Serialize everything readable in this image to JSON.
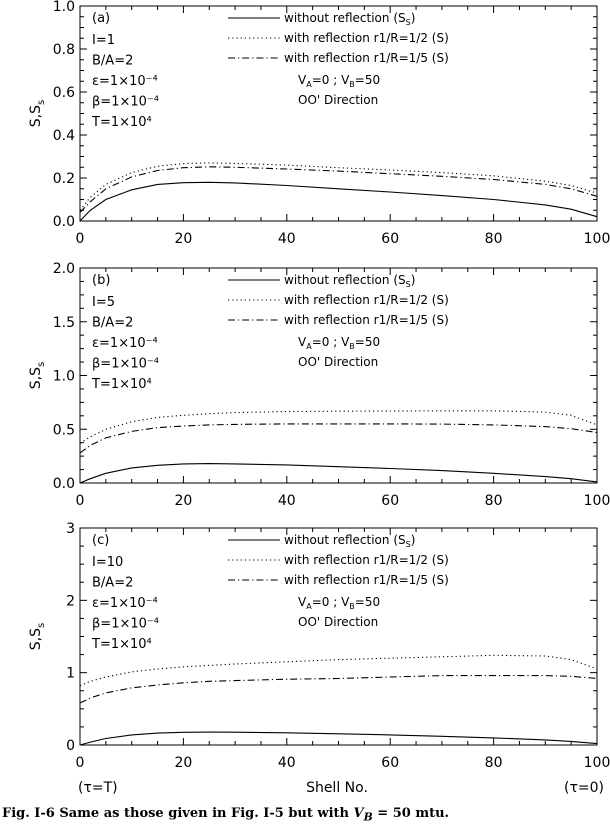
{
  "caption": {
    "prefix": "Fig. I-6 Same as those given in Fig. I-5 but with ",
    "math": "V",
    "math_sub": "B",
    "suffix": " = 50 mtu."
  },
  "bottom_labels": {
    "left": "(τ=T)",
    "center": "Shell No.",
    "right": "(τ=0)"
  },
  "chart_data": [
    {
      "type": "line",
      "panel_label": "(a)",
      "xlim": [
        0,
        100
      ],
      "ylim": [
        0,
        1.0
      ],
      "x_ticks": [
        "0",
        "20",
        "40",
        "60",
        "80",
        "100"
      ],
      "y_ticks": [
        {
          "v": 0.0,
          "t": "0.0"
        },
        {
          "v": 0.2,
          "t": "0.2"
        },
        {
          "v": 0.4,
          "t": "0.4"
        },
        {
          "v": 0.6,
          "t": "0.6"
        },
        {
          "v": 0.8,
          "t": "0.8"
        },
        {
          "v": 1.0,
          "t": "1.0"
        }
      ],
      "ylabel": "S,S",
      "ylabel_sub": "s",
      "params": [
        "I=1",
        "B/A=2",
        "ε=1×10⁻⁴",
        "β=1×10⁻⁴",
        "T=1×10⁴"
      ],
      "legend": [
        {
          "dash": "solid",
          "label": "without reflection (S",
          "sub": "S",
          "tail": ")"
        },
        {
          "dash": "dotted",
          "label": "with reflection r1/R=1/2 (S)"
        },
        {
          "dash": "dashdot",
          "label": "with reflection r1/R=1/5 (S)"
        }
      ],
      "velocity": {
        "a": "V",
        "a_sub": "A",
        "a_val": "=0 ; ",
        "b": "V",
        "b_sub": "B",
        "b_val": "=50"
      },
      "direction": "OO' Direction",
      "series": [
        {
          "dash": "solid",
          "x": [
            0,
            2,
            5,
            10,
            15,
            20,
            25,
            30,
            40,
            50,
            60,
            70,
            80,
            90,
            95,
            100
          ],
          "y": [
            0.0,
            0.05,
            0.1,
            0.145,
            0.17,
            0.178,
            0.18,
            0.177,
            0.165,
            0.15,
            0.135,
            0.118,
            0.1,
            0.075,
            0.055,
            0.02
          ]
        },
        {
          "dash": "dotted",
          "x": [
            0,
            2,
            5,
            10,
            15,
            20,
            25,
            30,
            40,
            50,
            60,
            70,
            80,
            90,
            95,
            100
          ],
          "y": [
            0.05,
            0.11,
            0.17,
            0.225,
            0.255,
            0.267,
            0.27,
            0.268,
            0.26,
            0.248,
            0.237,
            0.225,
            0.21,
            0.185,
            0.165,
            0.13
          ]
        },
        {
          "dash": "dashdot",
          "x": [
            0,
            2,
            5,
            10,
            15,
            20,
            25,
            30,
            40,
            50,
            60,
            70,
            80,
            90,
            95,
            100
          ],
          "y": [
            0.04,
            0.09,
            0.15,
            0.205,
            0.235,
            0.248,
            0.252,
            0.25,
            0.242,
            0.232,
            0.22,
            0.208,
            0.193,
            0.17,
            0.15,
            0.115
          ]
        }
      ]
    },
    {
      "type": "line",
      "panel_label": "(b)",
      "xlim": [
        0,
        100
      ],
      "ylim": [
        0,
        2.0
      ],
      "x_ticks": [
        "0",
        "20",
        "40",
        "60",
        "80",
        "100"
      ],
      "y_ticks": [
        {
          "v": 0.0,
          "t": "0.0"
        },
        {
          "v": 0.5,
          "t": "0.5"
        },
        {
          "v": 1.0,
          "t": "1.0"
        },
        {
          "v": 1.5,
          "t": "1.5"
        },
        {
          "v": 2.0,
          "t": "2.0"
        }
      ],
      "ylabel": "S,S",
      "ylabel_sub": "s",
      "params": [
        "I=5",
        "B/A=2",
        "ε=1×10⁻⁴",
        "β=1×10⁻⁴",
        "T=1×10⁴"
      ],
      "legend": [
        {
          "dash": "solid",
          "label": "without reflection (S",
          "sub": "S",
          "tail": ")"
        },
        {
          "dash": "dotted",
          "label": "with reflection r1/R=1/2 (S)"
        },
        {
          "dash": "dashdot",
          "label": "with reflection r1/R=1/5 (S)"
        }
      ],
      "velocity": {
        "a": "V",
        "a_sub": "A",
        "a_val": "=0 ; ",
        "b": "V",
        "b_sub": "B",
        "b_val": "=50"
      },
      "direction": "OO' Direction",
      "series": [
        {
          "dash": "solid",
          "x": [
            0,
            2,
            5,
            10,
            15,
            20,
            25,
            30,
            40,
            50,
            60,
            70,
            80,
            90,
            95,
            100
          ],
          "y": [
            0.0,
            0.04,
            0.09,
            0.14,
            0.165,
            0.178,
            0.18,
            0.178,
            0.168,
            0.152,
            0.135,
            0.115,
            0.09,
            0.06,
            0.04,
            0.01
          ]
        },
        {
          "dash": "dotted",
          "x": [
            0,
            2,
            5,
            10,
            15,
            20,
            25,
            30,
            40,
            50,
            60,
            70,
            80,
            90,
            95,
            100
          ],
          "y": [
            0.37,
            0.43,
            0.5,
            0.57,
            0.61,
            0.63,
            0.645,
            0.655,
            0.665,
            0.668,
            0.67,
            0.672,
            0.672,
            0.66,
            0.63,
            0.54
          ]
        },
        {
          "dash": "dashdot",
          "x": [
            0,
            2,
            5,
            10,
            15,
            20,
            25,
            30,
            40,
            50,
            60,
            70,
            80,
            90,
            95,
            100
          ],
          "y": [
            0.28,
            0.35,
            0.42,
            0.48,
            0.515,
            0.53,
            0.54,
            0.545,
            0.55,
            0.55,
            0.55,
            0.548,
            0.54,
            0.525,
            0.505,
            0.47
          ]
        }
      ]
    },
    {
      "type": "line",
      "panel_label": "(c)",
      "xlim": [
        0,
        100
      ],
      "ylim": [
        0,
        3
      ],
      "x_ticks": [
        "0",
        "20",
        "40",
        "60",
        "80",
        "100"
      ],
      "y_ticks": [
        {
          "v": 0,
          "t": "0"
        },
        {
          "v": 1,
          "t": "1"
        },
        {
          "v": 2,
          "t": "2"
        },
        {
          "v": 3,
          "t": "3"
        }
      ],
      "ylabel": "S,S",
      "ylabel_sub": "s",
      "params": [
        "I=10",
        "B/A=2",
        "ε=1×10⁻⁴",
        "β=1×10⁻⁴",
        "T=1×10⁴"
      ],
      "legend": [
        {
          "dash": "solid",
          "label": "without reflection (S",
          "sub": "S",
          "tail": ")"
        },
        {
          "dash": "dotted",
          "label": "with reflection r1/R=1/2 (S)"
        },
        {
          "dash": "dashdot",
          "label": "with reflection r1/R=1/5 (S)"
        }
      ],
      "velocity": {
        "a": "V",
        "a_sub": "A",
        "a_val": "=0 ; ",
        "b": "V",
        "b_sub": "B",
        "b_val": "=50"
      },
      "direction": "OO' Direction",
      "series": [
        {
          "dash": "solid",
          "x": [
            0,
            2,
            5,
            10,
            15,
            20,
            25,
            30,
            40,
            50,
            60,
            70,
            80,
            90,
            95,
            100
          ],
          "y": [
            0.0,
            0.04,
            0.09,
            0.14,
            0.165,
            0.175,
            0.178,
            0.177,
            0.168,
            0.155,
            0.14,
            0.12,
            0.098,
            0.07,
            0.05,
            0.02
          ]
        },
        {
          "dash": "dotted",
          "x": [
            0,
            2,
            5,
            10,
            15,
            20,
            25,
            30,
            40,
            50,
            60,
            70,
            80,
            90,
            95,
            100
          ],
          "y": [
            0.82,
            0.88,
            0.94,
            1.01,
            1.05,
            1.08,
            1.1,
            1.12,
            1.15,
            1.18,
            1.2,
            1.22,
            1.24,
            1.23,
            1.18,
            1.05
          ]
        },
        {
          "dash": "dashdot",
          "x": [
            0,
            2,
            5,
            10,
            15,
            20,
            25,
            30,
            40,
            50,
            60,
            70,
            80,
            90,
            95,
            100
          ],
          "y": [
            0.58,
            0.65,
            0.72,
            0.79,
            0.83,
            0.86,
            0.88,
            0.89,
            0.91,
            0.92,
            0.94,
            0.96,
            0.96,
            0.96,
            0.95,
            0.92
          ]
        }
      ]
    }
  ]
}
